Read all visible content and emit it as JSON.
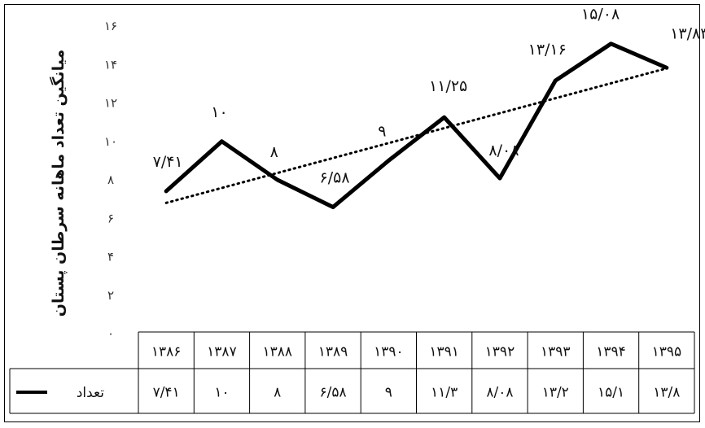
{
  "chart_data": {
    "type": "line",
    "ylabel": "میانگین تعداد ماهانه سرطان پستان",
    "y_ticks": [
      "۰",
      "۲",
      "۴",
      "۶",
      "۸",
      "۱۰",
      "۱۲",
      "۱۴",
      "۱۶"
    ],
    "ylim": [
      0,
      16
    ],
    "grid": false,
    "x": [
      "۱۳۸۶",
      "۱۳۸۷",
      "۱۳۸۸",
      "۱۳۸۹",
      "۱۳۹۰",
      "۱۳۹۱",
      "۱۳۹۲",
      "۱۳۹۳",
      "۱۳۹۴",
      "۱۳۹۵"
    ],
    "series": [
      {
        "name": "تعداد",
        "values": [
          7.41,
          10,
          8,
          6.58,
          9,
          11.25,
          8.08,
          13.16,
          15.08,
          13.83
        ],
        "data_labels": [
          "۷/۴۱",
          "۱۰",
          "۸",
          "۶/۵۸",
          "۹",
          "۱۱/۲۵",
          "۸/۰۸",
          "۱۳/۱۶",
          "۱۵/۰۸",
          "۱۳/۸۳"
        ],
        "table_values": [
          "۷/۴۱",
          "۱۰",
          "۸",
          "۶/۵۸",
          "۹",
          "۱۱/۳",
          "۸/۰۸",
          "۱۳/۲",
          "۱۵/۱",
          "۱۳/۸"
        ],
        "color": "#000000"
      }
    ],
    "trendline": {
      "style": "dotted",
      "start": 6.8,
      "end": 13.8,
      "color": "#000000"
    }
  }
}
